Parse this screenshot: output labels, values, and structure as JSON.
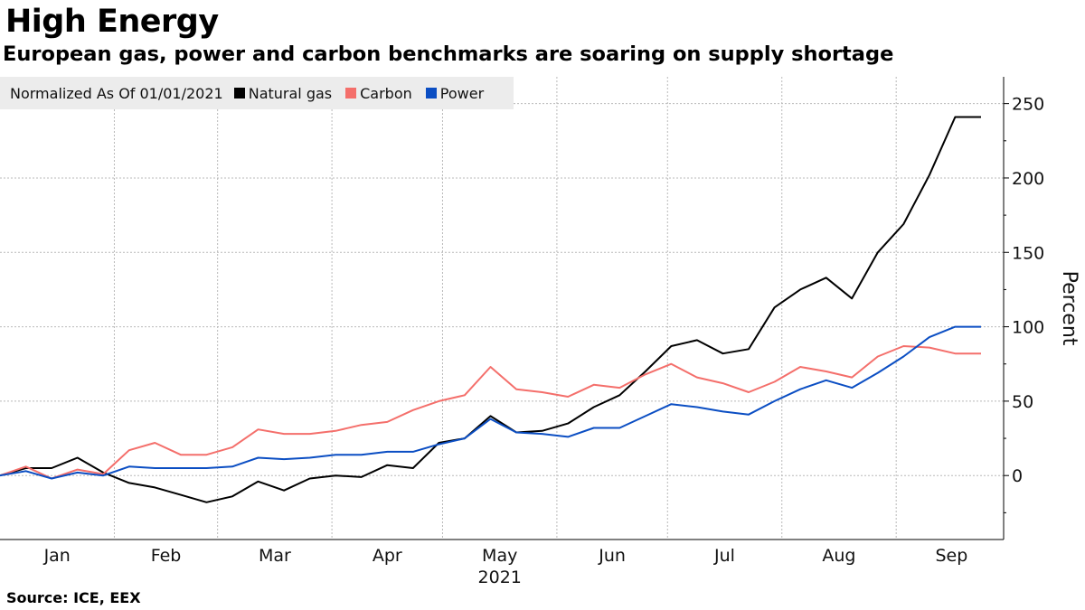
{
  "chart_data": {
    "type": "line",
    "title": "High Energy",
    "subtitle": "European gas, power and carbon benchmarks are soaring on supply shortage",
    "legend_caption": "Normalized As Of 01/01/2021",
    "legend_position": "top-left",
    "ylabel": "Percent",
    "ylim": [
      -43,
      268
    ],
    "yticks": [
      0,
      50,
      100,
      150,
      200,
      250
    ],
    "xlim": [
      "2021-01-01",
      "2021-09-24"
    ],
    "year_label": "2021",
    "months": [
      {
        "label": "Jan",
        "date": "2021-01-01"
      },
      {
        "label": "Feb",
        "date": "2021-02-01"
      },
      {
        "label": "Mar",
        "date": "2021-03-01"
      },
      {
        "label": "Apr",
        "date": "2021-04-01"
      },
      {
        "label": "May",
        "date": "2021-05-01"
      },
      {
        "label": "Jun",
        "date": "2021-06-01"
      },
      {
        "label": "Jul",
        "date": "2021-07-01"
      },
      {
        "label": "Aug",
        "date": "2021-08-01"
      },
      {
        "label": "Sep",
        "date": "2021-09-01"
      },
      {
        "label": "",
        "date": "2021-10-01"
      }
    ],
    "grid": true,
    "dates": [
      "2021-01-01",
      "2021-01-08",
      "2021-01-15",
      "2021-01-22",
      "2021-01-29",
      "2021-02-05",
      "2021-02-12",
      "2021-02-19",
      "2021-02-26",
      "2021-03-05",
      "2021-03-12",
      "2021-03-19",
      "2021-03-26",
      "2021-04-02",
      "2021-04-09",
      "2021-04-16",
      "2021-04-23",
      "2021-04-30",
      "2021-05-07",
      "2021-05-14",
      "2021-05-21",
      "2021-05-28",
      "2021-06-04",
      "2021-06-11",
      "2021-06-18",
      "2021-06-25",
      "2021-07-02",
      "2021-07-09",
      "2021-07-16",
      "2021-07-23",
      "2021-07-30",
      "2021-08-06",
      "2021-08-13",
      "2021-08-20",
      "2021-08-27",
      "2021-09-03",
      "2021-09-10",
      "2021-09-17",
      "2021-09-24"
    ],
    "series": [
      {
        "name": "Natural gas",
        "color": "#000000",
        "values": [
          0,
          5,
          5,
          12,
          2,
          -5,
          -8,
          -13,
          -18,
          -14,
          -4,
          -10,
          -2,
          0,
          -1,
          7,
          5,
          22,
          25,
          40,
          29,
          30,
          35,
          46,
          54,
          70,
          87,
          91,
          82,
          85,
          113,
          125,
          133,
          119,
          150,
          169,
          202,
          241,
          241
        ]
      },
      {
        "name": "Carbon",
        "color": "#f46f6b",
        "values": [
          0,
          6,
          -2,
          4,
          1,
          17,
          22,
          14,
          14,
          19,
          31,
          28,
          28,
          30,
          34,
          36,
          44,
          50,
          54,
          73,
          58,
          56,
          53,
          61,
          59,
          68,
          75,
          66,
          62,
          56,
          63,
          73,
          70,
          66,
          80,
          87,
          86,
          82,
          82
        ]
      },
      {
        "name": "Power",
        "color": "#0b4ec3",
        "values": [
          0,
          3,
          -2,
          2,
          0,
          6,
          5,
          5,
          5,
          6,
          12,
          11,
          12,
          14,
          14,
          16,
          16,
          21,
          25,
          38,
          29,
          28,
          26,
          32,
          32,
          40,
          48,
          46,
          43,
          41,
          50,
          58,
          64,
          59,
          69,
          80,
          93,
          100,
          100
        ]
      }
    ]
  },
  "source": "Source: ICE, EEX"
}
